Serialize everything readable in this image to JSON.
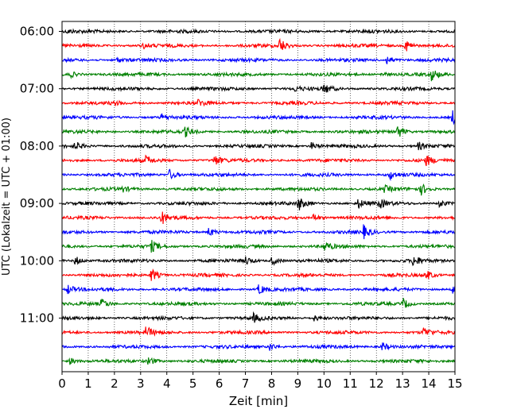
{
  "chart_data": {
    "type": "line",
    "title": "",
    "xlabel": "Zeit  [min]",
    "ylabel": "UTC (Lokalzeit = UTC + 01:00)",
    "xlim": [
      0,
      15
    ],
    "x_ticks": [
      "0",
      "1",
      "2",
      "3",
      "4",
      "5",
      "6",
      "7",
      "8",
      "9",
      "10",
      "11",
      "12",
      "13",
      "14",
      "15"
    ],
    "y_tick_labels": [
      {
        "row": 0,
        "label": "06:00"
      },
      {
        "row": 4,
        "label": "07:00"
      },
      {
        "row": 8,
        "label": "08:00"
      },
      {
        "row": 12,
        "label": "09:00"
      },
      {
        "row": 16,
        "label": "10:00"
      },
      {
        "row": 20,
        "label": "11:00"
      }
    ],
    "grid": "vertical-dotted",
    "trace_cycle_colors": [
      "#000000",
      "#ff0000",
      "#0000ff",
      "#008000"
    ],
    "traces": [
      {
        "start_utc": "06:00",
        "events": [
          {
            "t": 0.2,
            "a": 2
          }
        ]
      },
      {
        "start_utc": "06:15",
        "events": [
          {
            "t": 3.1,
            "a": 3
          },
          {
            "t": 8.3,
            "a": 9
          },
          {
            "t": 13.1,
            "a": 9
          }
        ]
      },
      {
        "start_utc": "06:30",
        "events": [
          {
            "t": 2.1,
            "a": 3
          },
          {
            "t": 12.4,
            "a": 6
          }
        ]
      },
      {
        "start_utc": "06:45",
        "events": [
          {
            "t": 0.3,
            "a": 4
          },
          {
            "t": 12.2,
            "a": 3
          },
          {
            "t": 14.1,
            "a": 7
          }
        ]
      },
      {
        "start_utc": "07:00",
        "events": [
          {
            "t": 10.0,
            "a": 6
          },
          {
            "t": 8.9,
            "a": 3
          }
        ]
      },
      {
        "start_utc": "07:15",
        "events": [
          {
            "t": 5.2,
            "a": 4
          },
          {
            "t": 2.0,
            "a": 2
          }
        ]
      },
      {
        "start_utc": "07:30",
        "events": [
          {
            "t": 14.9,
            "a": 9
          },
          {
            "t": 3.8,
            "a": 4
          }
        ]
      },
      {
        "start_utc": "07:45",
        "events": [
          {
            "t": 4.7,
            "a": 6
          },
          {
            "t": 12.8,
            "a": 9
          }
        ]
      },
      {
        "start_utc": "08:00",
        "events": [
          {
            "t": 0.5,
            "a": 5
          },
          {
            "t": 9.5,
            "a": 5
          },
          {
            "t": 13.6,
            "a": 5
          }
        ]
      },
      {
        "start_utc": "08:15",
        "events": [
          {
            "t": 3.2,
            "a": 5
          },
          {
            "t": 5.8,
            "a": 7
          },
          {
            "t": 13.9,
            "a": 6
          }
        ]
      },
      {
        "start_utc": "08:30",
        "events": [
          {
            "t": 4.1,
            "a": 7
          },
          {
            "t": 12.5,
            "a": 6
          }
        ]
      },
      {
        "start_utc": "08:45",
        "events": [
          {
            "t": 2.3,
            "a": 3
          },
          {
            "t": 13.7,
            "a": 7
          },
          {
            "t": 12.3,
            "a": 4
          }
        ]
      },
      {
        "start_utc": "09:00",
        "events": [
          {
            "t": 9.0,
            "a": 9
          },
          {
            "t": 11.3,
            "a": 6
          },
          {
            "t": 12.1,
            "a": 6
          },
          {
            "t": 14.4,
            "a": 5
          }
        ]
      },
      {
        "start_utc": "09:15",
        "events": [
          {
            "t": 3.8,
            "a": 8
          },
          {
            "t": 9.6,
            "a": 5
          }
        ]
      },
      {
        "start_utc": "09:30",
        "events": [
          {
            "t": 5.6,
            "a": 6
          },
          {
            "t": 11.5,
            "a": 8
          }
        ]
      },
      {
        "start_utc": "09:45",
        "events": [
          {
            "t": 3.4,
            "a": 7
          },
          {
            "t": 10.0,
            "a": 6
          }
        ]
      },
      {
        "start_utc": "10:00",
        "events": [
          {
            "t": 0.5,
            "a": 6
          },
          {
            "t": 8.0,
            "a": 6
          },
          {
            "t": 13.4,
            "a": 7
          },
          {
            "t": 7.0,
            "a": 5
          }
        ]
      },
      {
        "start_utc": "10:15",
        "events": [
          {
            "t": 3.4,
            "a": 9
          },
          {
            "t": 13.9,
            "a": 6
          }
        ]
      },
      {
        "start_utc": "10:30",
        "events": [
          {
            "t": 7.5,
            "a": 7
          },
          {
            "t": 0.2,
            "a": 6
          },
          {
            "t": 14.9,
            "a": 6
          }
        ]
      },
      {
        "start_utc": "10:45",
        "events": [
          {
            "t": 1.5,
            "a": 6
          },
          {
            "t": 13.0,
            "a": 7
          }
        ]
      },
      {
        "start_utc": "11:00",
        "events": [
          {
            "t": 7.3,
            "a": 5
          },
          {
            "t": 9.6,
            "a": 4
          }
        ]
      },
      {
        "start_utc": "11:15",
        "events": [
          {
            "t": 3.2,
            "a": 7
          },
          {
            "t": 13.8,
            "a": 6
          }
        ]
      },
      {
        "start_utc": "11:30",
        "events": [
          {
            "t": 7.9,
            "a": 6
          },
          {
            "t": 12.2,
            "a": 6
          }
        ]
      },
      {
        "start_utc": "11:45",
        "events": [
          {
            "t": 3.3,
            "a": 6
          },
          {
            "t": 0.3,
            "a": 4
          }
        ]
      }
    ]
  }
}
